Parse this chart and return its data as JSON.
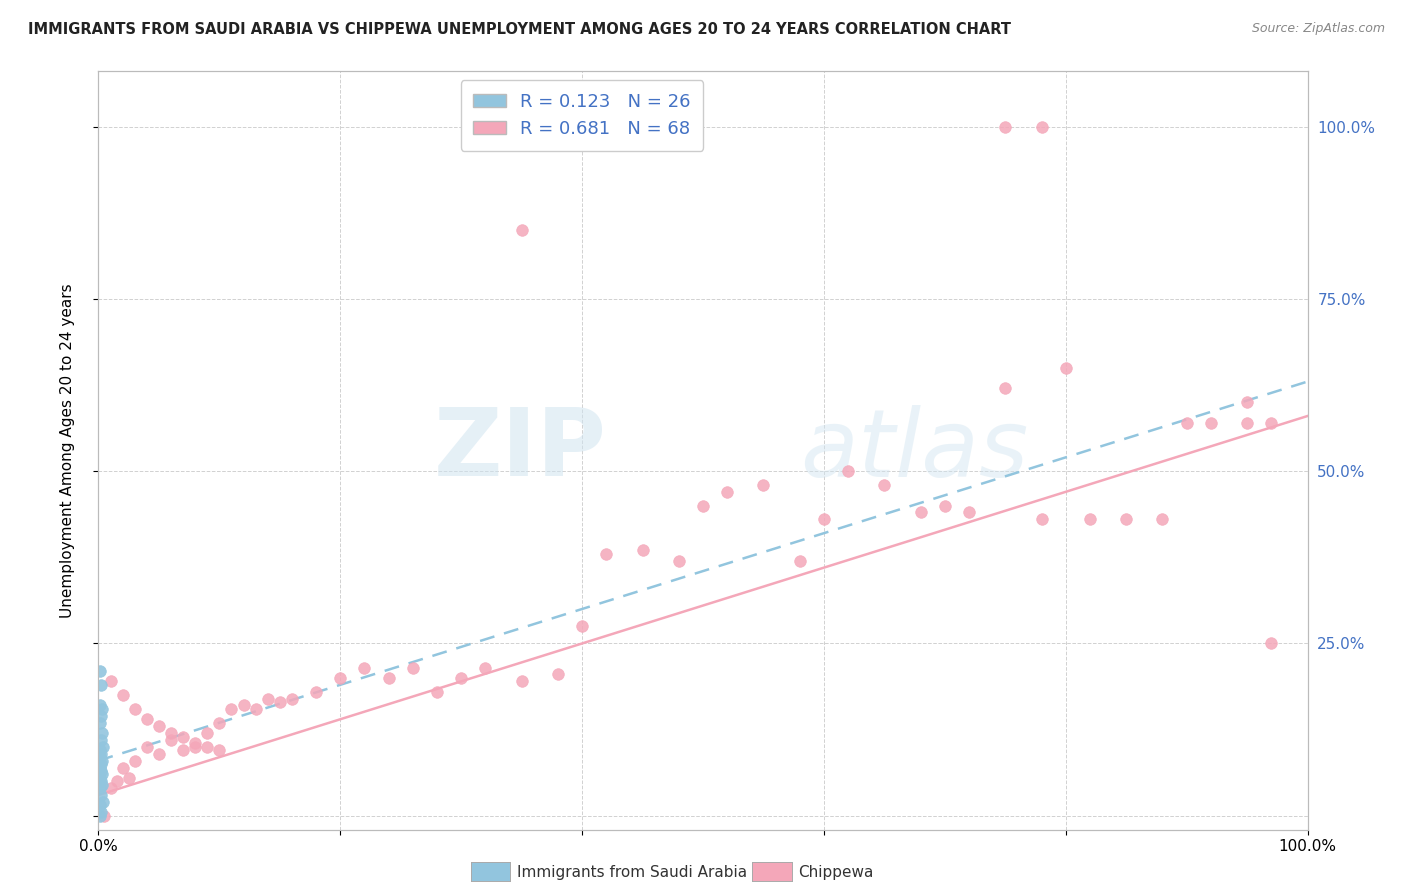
{
  "title": "IMMIGRANTS FROM SAUDI ARABIA VS CHIPPEWA UNEMPLOYMENT AMONG AGES 20 TO 24 YEARS CORRELATION CHART",
  "source": "Source: ZipAtlas.com",
  "ylabel": "Unemployment Among Ages 20 to 24 years",
  "legend_R1": "R = 0.123",
  "legend_N1": "N = 26",
  "legend_R2": "R = 0.681",
  "legend_N2": "N = 68",
  "legend_label1": "Immigrants from Saudi Arabia",
  "legend_label2": "Chippewa",
  "color_blue": "#92C5DE",
  "color_pink": "#F4A7B9",
  "color_blue_text": "#4472C4",
  "color_pink_text": "#E06090",
  "watermark_zip": "ZIP",
  "watermark_atlas": "atlas",
  "background_color": "#FFFFFF",
  "grid_color": "#CCCCCC",
  "xlim": [
    0.0,
    1.0
  ],
  "ylim": [
    -0.02,
    1.08
  ],
  "right_ytick_vals": [
    0.0,
    0.25,
    0.5,
    0.75,
    1.0
  ],
  "right_yticklabels": [
    "",
    "25.0%",
    "50.0%",
    "75.0%",
    "100.0%"
  ],
  "saudi_x": [
    0.001,
    0.002,
    0.001,
    0.003,
    0.002,
    0.001,
    0.003,
    0.002,
    0.004,
    0.001,
    0.002,
    0.001,
    0.003,
    0.002,
    0.001,
    0.002,
    0.003,
    0.001,
    0.002,
    0.003,
    0.001,
    0.002,
    0.004,
    0.001,
    0.002,
    0.001
  ],
  "saudi_y": [
    0.21,
    0.19,
    0.16,
    0.155,
    0.145,
    0.135,
    0.12,
    0.11,
    0.1,
    0.095,
    0.09,
    0.085,
    0.08,
    0.075,
    0.07,
    0.065,
    0.06,
    0.055,
    0.05,
    0.045,
    0.04,
    0.03,
    0.02,
    0.015,
    0.005,
    0.0
  ],
  "chippewa_x": [
    0.005,
    0.01,
    0.015,
    0.02,
    0.025,
    0.03,
    0.04,
    0.05,
    0.06,
    0.07,
    0.08,
    0.09,
    0.1,
    0.11,
    0.12,
    0.13,
    0.14,
    0.15,
    0.16,
    0.18,
    0.2,
    0.22,
    0.24,
    0.26,
    0.28,
    0.3,
    0.32,
    0.35,
    0.38,
    0.4,
    0.42,
    0.45,
    0.48,
    0.5,
    0.52,
    0.55,
    0.58,
    0.6,
    0.62,
    0.65,
    0.68,
    0.7,
    0.72,
    0.75,
    0.78,
    0.8,
    0.82,
    0.85,
    0.88,
    0.9,
    0.92,
    0.95,
    0.97,
    0.35,
    0.75,
    0.78,
    0.95,
    0.97,
    0.01,
    0.02,
    0.03,
    0.04,
    0.05,
    0.06,
    0.07,
    0.08,
    0.09,
    0.1
  ],
  "chippewa_y": [
    0.0,
    0.04,
    0.05,
    0.07,
    0.055,
    0.08,
    0.1,
    0.09,
    0.11,
    0.095,
    0.1,
    0.12,
    0.135,
    0.155,
    0.16,
    0.155,
    0.17,
    0.165,
    0.17,
    0.18,
    0.2,
    0.215,
    0.2,
    0.215,
    0.18,
    0.2,
    0.215,
    0.195,
    0.205,
    0.275,
    0.38,
    0.385,
    0.37,
    0.45,
    0.47,
    0.48,
    0.37,
    0.43,
    0.5,
    0.48,
    0.44,
    0.45,
    0.44,
    0.62,
    0.43,
    0.65,
    0.43,
    0.43,
    0.43,
    0.57,
    0.57,
    0.6,
    0.57,
    0.85,
    1.0,
    1.0,
    0.57,
    0.25,
    0.195,
    0.175,
    0.155,
    0.14,
    0.13,
    0.12,
    0.115,
    0.105,
    0.1,
    0.095
  ]
}
